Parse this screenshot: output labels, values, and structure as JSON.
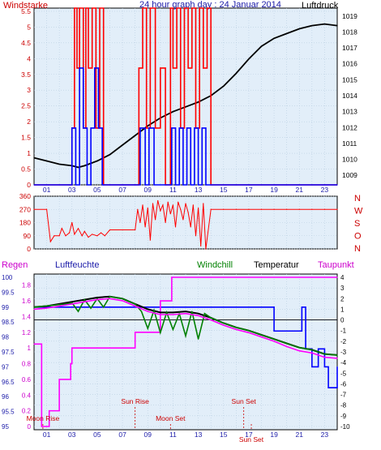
{
  "title": "24 hour graph day : 24 Januar 2014",
  "labels": {
    "windstaerke": "Windstarke",
    "luftdruck": "Luftdruck",
    "regen": "Regen",
    "luftfeuchte": "Luftfeuchte",
    "windchill": "Windchill",
    "temperatur": "Temperatur",
    "taupunkt": "Taupunkt"
  },
  "colors": {
    "plot_bg": "#e2eef9",
    "axis_red": "#cc0000",
    "axis_blue": "#1a1aa8",
    "wind_gust": "#ff0000",
    "wind_avg": "#0000ff",
    "pressure": "#000000",
    "direction": "#ff0000",
    "humidity": "#0000ff",
    "rain": "#ff00ff",
    "temperature": "#000000",
    "windchill": "#008000",
    "dewpoint": "#ff00ff",
    "event": "#cc0000"
  },
  "events": [
    {
      "label": "Moon Rise",
      "hour": 0.7
    },
    {
      "label": "Sun Rise",
      "hour": 8.0
    },
    {
      "label": "Moon Set",
      "hour": 10.8
    },
    {
      "label": "Sun Set",
      "hour": 16.6
    },
    {
      "label": "Sun Set",
      "hour": 17.2
    }
  ],
  "chart_data": [
    {
      "type": "line",
      "panel": "wind_pressure",
      "title": "24 hour graph day : 24 Januar 2014",
      "xlabel": "",
      "x_ticks": [
        "01",
        "03",
        "05",
        "07",
        "09",
        "11",
        "13",
        "15",
        "17",
        "19",
        "21",
        "23"
      ],
      "y_left_label": "Windstarke",
      "y_left_ticks": [
        "0",
        "0.5",
        "1",
        "1.5",
        "2",
        "2.5",
        "3",
        "3.5",
        "4",
        "4.5",
        "5",
        "5.5"
      ],
      "ylim_left": [
        0,
        5.6
      ],
      "y_right_label": "Luftdruck",
      "y_right_ticks": [
        "1009",
        "1010",
        "1011",
        "1012",
        "1013",
        "1014",
        "1015",
        "1016",
        "1017",
        "1018",
        "1019"
      ],
      "ylim_right": [
        1008.4,
        1019.5
      ],
      "series": [
        {
          "name": "Luftdruck",
          "axis": "right",
          "color": "#000000",
          "x": [
            0,
            1,
            2,
            3,
            3.5,
            4,
            5,
            6,
            7,
            8,
            9,
            10,
            11,
            12,
            13,
            14,
            15,
            16,
            17,
            18,
            19,
            20,
            21,
            22,
            23,
            24
          ],
          "values": [
            1010.1,
            1009.9,
            1009.7,
            1009.6,
            1009.5,
            1009.6,
            1009.9,
            1010.3,
            1010.9,
            1011.5,
            1012.1,
            1012.6,
            1013.0,
            1013.3,
            1013.6,
            1014.0,
            1014.6,
            1015.4,
            1016.3,
            1017.1,
            1017.6,
            1017.9,
            1018.2,
            1018.4,
            1018.5,
            1018.4
          ]
        },
        {
          "name": "Wind gust",
          "axis": "left",
          "color": "#ff0000",
          "x": [
            0,
            1,
            2,
            2.7,
            3,
            3.2,
            3.4,
            3.6,
            3.9,
            4.1,
            4.3,
            4.6,
            4.9,
            5.2,
            5.5,
            6,
            7,
            8,
            8.3,
            8.6,
            8.9,
            9.2,
            9.6,
            10,
            10.4,
            10.8,
            11,
            11.3,
            11.6,
            11.9,
            12.2,
            12.5,
            12.8,
            13.1,
            13.4,
            13.7,
            14,
            15,
            16,
            17,
            18,
            19,
            20,
            21,
            22,
            23,
            24
          ],
          "values": [
            0,
            0,
            0,
            0,
            1.8,
            5.6,
            3.7,
            5.6,
            1.8,
            5.6,
            3.7,
            5.6,
            1.8,
            5.6,
            0,
            0,
            0,
            0,
            3.7,
            5.6,
            1.8,
            5.6,
            1.8,
            3.7,
            0,
            5.6,
            3.7,
            5.6,
            1.8,
            5.6,
            3.7,
            5.6,
            1.8,
            5.6,
            3.7,
            5.6,
            0,
            0,
            0,
            0,
            0,
            0,
            0,
            0,
            0,
            0,
            0
          ]
        },
        {
          "name": "Wind avg",
          "axis": "left",
          "color": "#0000ff",
          "x": [
            0,
            1,
            2,
            2.8,
            3,
            3.3,
            3.6,
            3.9,
            4.2,
            4.5,
            4.8,
            5.1,
            5.4,
            6,
            7,
            8,
            8.4,
            8.8,
            9.1,
            9.5,
            10,
            10.9,
            11.2,
            11.5,
            11.8,
            12.1,
            12.4,
            12.7,
            13,
            13.3,
            13.6,
            14,
            15,
            16,
            17,
            18,
            19,
            20,
            21,
            22,
            23,
            24
          ],
          "values": [
            0,
            0,
            0,
            0,
            1.8,
            0,
            3.7,
            1.8,
            0,
            1.8,
            3.7,
            1.8,
            0,
            0,
            0,
            0,
            1.8,
            0,
            1.8,
            0,
            0,
            1.8,
            0,
            1.8,
            0,
            1.8,
            0,
            1.8,
            0,
            1.8,
            0,
            0,
            0,
            0,
            0,
            0,
            0,
            0,
            0,
            0,
            0,
            0
          ]
        }
      ]
    },
    {
      "type": "line",
      "panel": "direction",
      "y_left_ticks": [
        "0",
        "90",
        "180",
        "270",
        "360"
      ],
      "ylim": [
        0,
        360
      ],
      "y_right_ticks": [
        "N",
        "W",
        "S",
        "O",
        "N"
      ],
      "series": [
        {
          "name": "Windrichtung",
          "color": "#ff0000",
          "x": [
            0,
            1,
            1.3,
            1.6,
            2,
            2.2,
            2.5,
            2.8,
            3,
            3.2,
            3.5,
            3.8,
            4,
            4.3,
            4.6,
            5,
            5.3,
            5.6,
            6,
            7,
            8,
            8.2,
            8.4,
            8.6,
            8.8,
            9,
            9.2,
            9.4,
            9.6,
            9.8,
            10,
            10.2,
            10.4,
            10.6,
            10.8,
            11,
            11.2,
            11.4,
            11.6,
            11.8,
            12,
            12.2,
            12.4,
            12.6,
            12.8,
            13,
            13.2,
            13.4,
            13.6,
            14,
            15,
            16,
            17,
            18,
            19,
            20,
            21,
            22,
            23,
            24
          ],
          "values": [
            270,
            270,
            50,
            90,
            90,
            140,
            90,
            110,
            180,
            100,
            140,
            90,
            120,
            80,
            100,
            90,
            110,
            90,
            130,
            130,
            130,
            270,
            180,
            300,
            150,
            280,
            60,
            310,
            200,
            330,
            260,
            300,
            180,
            320,
            240,
            300,
            150,
            320,
            270,
            200,
            310,
            250,
            150,
            300,
            90,
            280,
            20,
            310,
            0,
            270,
            270,
            270,
            270,
            270,
            270,
            270,
            270,
            270,
            270,
            270
          ]
        }
      ]
    },
    {
      "type": "line",
      "panel": "temperature",
      "y_left_ticks": [
        "95",
        "95.5",
        "96",
        "96.5",
        "97",
        "97.5",
        "98",
        "98.5",
        "99",
        "99.5",
        "100"
      ],
      "ylim_left": [
        95,
        100
      ],
      "y_left2_ticks": [
        "0",
        "0.2",
        "0.4",
        "0.6",
        "0.8",
        "1",
        "1.2",
        "1.4",
        "1.6",
        "1.8"
      ],
      "ylim_left2": [
        0,
        1.9
      ],
      "y_right_ticks": [
        "4",
        "3",
        "2",
        "1",
        "0",
        "-1",
        "-2",
        "-3",
        "-4",
        "-5",
        "-6",
        "-7",
        "-8",
        "-9",
        "-10"
      ],
      "ylim_right": [
        -10,
        4
      ],
      "series": [
        {
          "name": "Luftfeuchte",
          "axis": "left",
          "color": "#0000ff",
          "x": [
            0,
            1,
            2,
            3,
            4,
            5,
            6,
            7,
            8,
            9,
            10,
            11,
            12,
            13,
            14,
            15,
            16,
            17,
            18,
            18.7,
            19,
            19.5,
            20,
            20.5,
            21,
            21.2,
            21.5,
            22,
            22.5,
            23,
            23.3,
            24
          ],
          "values": [
            99,
            99,
            99,
            99,
            99,
            99,
            99,
            99,
            99,
            99,
            99,
            99,
            99,
            99,
            99,
            99,
            99,
            99,
            99,
            99,
            98.2,
            98.2,
            98.2,
            98.2,
            98.2,
            99,
            97.6,
            97,
            97.6,
            97,
            96.3,
            97
          ]
        },
        {
          "name": "Regen",
          "axis": "left2",
          "color": "#ff00ff",
          "x": [
            0,
            0.5,
            0.6,
            1,
            1.2,
            1.5,
            1.9,
            2,
            2.5,
            2.9,
            3,
            4,
            5,
            6,
            7,
            7.9,
            8,
            9,
            10,
            10.8,
            10.9,
            11,
            14,
            18,
            22,
            24
          ],
          "values": [
            1.05,
            1.05,
            0,
            0,
            0.2,
            0.2,
            0.2,
            0.6,
            0.6,
            0.8,
            1.0,
            1.0,
            1.0,
            1.0,
            1.0,
            1.0,
            1.2,
            1.2,
            1.6,
            1.6,
            1.9,
            1.9,
            1.9,
            1.9,
            1.9,
            1.9
          ]
        },
        {
          "name": "Temperatur",
          "axis": "right",
          "color": "#000000",
          "x": [
            0,
            1,
            2,
            3,
            4,
            5,
            6,
            7,
            8,
            9,
            10,
            11,
            12,
            13,
            14,
            15,
            16,
            17,
            18,
            19,
            20,
            21,
            22,
            23,
            24
          ],
          "values": [
            1.2,
            1.3,
            1.5,
            1.7,
            1.9,
            2.1,
            2.2,
            2.0,
            1.5,
            1.0,
            0.7,
            0.7,
            0.8,
            0.6,
            0.2,
            -0.3,
            -0.7,
            -1.0,
            -1.4,
            -1.8,
            -2.2,
            -2.6,
            -2.8,
            -3.2,
            -3.3
          ]
        },
        {
          "name": "Windchill",
          "axis": "right",
          "color": "#008000",
          "x": [
            0,
            2.5,
            3,
            3.5,
            4,
            4.5,
            5,
            5.5,
            6,
            7,
            8,
            8.5,
            9,
            9.5,
            10,
            10.5,
            11,
            11.5,
            12,
            12.5,
            13,
            13.5,
            14,
            15,
            16,
            17,
            18,
            19,
            20,
            21,
            22,
            23,
            24
          ],
          "values": [
            1.2,
            1.5,
            1.6,
            0.8,
            1.9,
            1.1,
            2.0,
            1.2,
            2.2,
            2.0,
            1.5,
            0.8,
            -0.8,
            0.9,
            -1.2,
            0.7,
            -0.9,
            0.6,
            -1.5,
            0.8,
            -1.8,
            0.6,
            0.2,
            -0.3,
            -0.7,
            -1.0,
            -1.4,
            -1.8,
            -2.2,
            -2.6,
            -2.8,
            -3.2,
            -3.3
          ]
        },
        {
          "name": "Taupunkt",
          "axis": "right",
          "color": "#ff00ff",
          "x": [
            0,
            1,
            2,
            3,
            4,
            5,
            6,
            7,
            8,
            9,
            10,
            11,
            12,
            13,
            14,
            15,
            16,
            17,
            18,
            19,
            20,
            21,
            22,
            23,
            24
          ],
          "values": [
            1.0,
            1.1,
            1.3,
            1.5,
            1.7,
            1.9,
            2.0,
            1.8,
            1.3,
            0.8,
            0.5,
            0.5,
            0.6,
            0.4,
            0.0,
            -0.5,
            -0.9,
            -1.2,
            -1.6,
            -2.0,
            -2.5,
            -2.9,
            -3.1,
            -3.5,
            -3.6
          ]
        }
      ]
    }
  ]
}
